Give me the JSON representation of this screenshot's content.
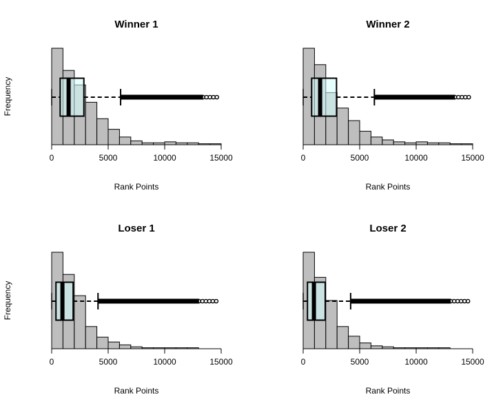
{
  "figure": {
    "ylabel": "Frequency"
  },
  "colors": {
    "histogram_fill": "#bebebe",
    "histogram_stroke": "#000000",
    "boxplot_fill": "#d6ffff",
    "median_line": "#000000"
  },
  "chart_data": [
    {
      "type": "histogram",
      "title": "Winner 1",
      "xlabel": "Rank Points",
      "ylabel": "Frequency",
      "xlim": [
        0,
        15000
      ],
      "xticks": [
        "0",
        "5000",
        "10000",
        "15000"
      ],
      "bin_width": 1000,
      "bin_edges": [
        0,
        1000,
        2000,
        3000,
        4000,
        5000,
        6000,
        7000,
        8000,
        9000,
        10000,
        11000,
        12000,
        13000,
        14000,
        15000
      ],
      "counts": [
        100,
        77,
        62,
        44,
        27,
        16,
        8,
        4,
        2,
        2,
        3,
        2,
        2,
        1,
        1
      ],
      "boxplot": {
        "min": 0,
        "q1": 750,
        "median": 1500,
        "q3": 2850,
        "whisker_high": 6100,
        "outliers_range": [
          6100,
          15000
        ]
      }
    },
    {
      "type": "histogram",
      "title": "Winner 2",
      "xlabel": "Rank Points",
      "ylabel": "Frequency",
      "xlim": [
        0,
        15000
      ],
      "xticks": [
        "0",
        "5000",
        "10000",
        "15000"
      ],
      "bin_width": 1000,
      "bin_edges": [
        0,
        1000,
        2000,
        3000,
        4000,
        5000,
        6000,
        7000,
        8000,
        9000,
        10000,
        11000,
        12000,
        13000,
        14000,
        15000
      ],
      "counts": [
        100,
        83,
        54,
        38,
        25,
        14,
        8,
        5,
        3,
        2,
        3,
        2,
        2,
        1,
        1
      ],
      "boxplot": {
        "min": 0,
        "q1": 750,
        "median": 1500,
        "q3": 2950,
        "whisker_high": 6300,
        "outliers_range": [
          6300,
          15000
        ]
      }
    },
    {
      "type": "histogram",
      "title": "Loser 1",
      "xlabel": "Rank Points",
      "ylabel": "Frequency",
      "xlim": [
        0,
        15000
      ],
      "xticks": [
        "0",
        "5000",
        "10000",
        "15000"
      ],
      "bin_width": 1000,
      "bin_edges": [
        0,
        1000,
        2000,
        3000,
        4000,
        5000,
        6000,
        7000,
        8000,
        9000,
        10000,
        11000,
        12000,
        13000,
        14000,
        15000
      ],
      "counts": [
        100,
        77,
        55,
        23,
        12,
        7,
        4,
        2,
        1,
        1,
        1,
        1,
        1,
        0,
        0
      ],
      "boxplot": {
        "min": 0,
        "q1": 380,
        "median": 950,
        "q3": 1900,
        "whisker_high": 4100,
        "outliers_range": [
          4100,
          15000
        ]
      }
    },
    {
      "type": "histogram",
      "title": "Loser 2",
      "xlabel": "Rank Points",
      "ylabel": "Frequency",
      "xlim": [
        0,
        15000
      ],
      "xticks": [
        "0",
        "5000",
        "10000",
        "15000"
      ],
      "bin_width": 1000,
      "bin_edges": [
        0,
        1000,
        2000,
        3000,
        4000,
        5000,
        6000,
        7000,
        8000,
        9000,
        10000,
        11000,
        12000,
        13000,
        14000,
        15000
      ],
      "counts": [
        100,
        74,
        50,
        23,
        13,
        6,
        3,
        2,
        1,
        1,
        1,
        1,
        1,
        0,
        0
      ],
      "boxplot": {
        "min": 0,
        "q1": 380,
        "median": 950,
        "q3": 1950,
        "whisker_high": 4200,
        "outliers_range": [
          4200,
          15000
        ]
      }
    }
  ]
}
